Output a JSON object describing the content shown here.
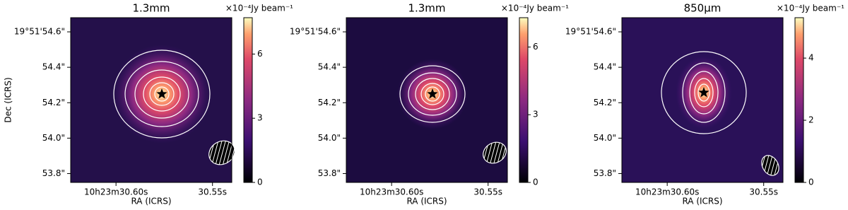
{
  "chart_data": [
    {
      "type": "image",
      "title": "1.3mm",
      "xlabel": "RA (ICRS)",
      "ylabel": "Dec (ICRS)",
      "xlim": [
        30.6235,
        30.54
      ],
      "xticks": [
        {
          "value": 30.6,
          "label": "10h23m30.60s"
        },
        {
          "value": 30.55,
          "label": "30.55s"
        }
      ],
      "ylim": [
        53.75,
        54.68
      ],
      "yticks": [
        {
          "value": 54.6,
          "label": "19°51'54.6\""
        },
        {
          "value": 54.4,
          "label": "54.4\""
        },
        {
          "value": 54.2,
          "label": "54.2\""
        },
        {
          "value": 54.0,
          "label": "54.0\""
        },
        {
          "value": 53.8,
          "label": "53.8\""
        }
      ],
      "colorbar_label": "×10⁻⁴Jy beam⁻¹",
      "clim": [
        0,
        7.7
      ],
      "cticks": [
        0,
        3,
        6
      ]
    },
    {
      "type": "image",
      "title": "1.3mm",
      "xlabel": "RA (ICRS)",
      "xlim": [
        30.6235,
        30.54
      ],
      "xticks": [
        {
          "value": 30.6,
          "label": "10h23m30.60s"
        },
        {
          "value": 30.55,
          "label": "30.55s"
        }
      ],
      "ylim": [
        53.75,
        54.68
      ],
      "yticks": [
        {
          "value": 54.6,
          "label": "19°51'54.6\""
        },
        {
          "value": 54.4,
          "label": "54.4\""
        },
        {
          "value": 54.2,
          "label": "54.2\""
        },
        {
          "value": 54.0,
          "label": "54.0\""
        },
        {
          "value": 53.8,
          "label": "53.8\""
        }
      ],
      "colorbar_label": "×10⁻⁴Jy beam⁻¹",
      "clim": [
        0,
        7.3
      ],
      "cticks": [
        0,
        3,
        6
      ]
    },
    {
      "type": "image",
      "title": "850μm",
      "xlabel": "RA (ICRS)",
      "xlim": [
        30.6235,
        30.54
      ],
      "xticks": [
        {
          "value": 30.6,
          "label": "10h23m30.60s"
        },
        {
          "value": 30.55,
          "label": "30.55s"
        }
      ],
      "ylim": [
        53.75,
        54.68
      ],
      "yticks": [
        {
          "value": 54.6,
          "label": "19°51'54.6\""
        },
        {
          "value": 54.4,
          "label": "54.4\""
        },
        {
          "value": 54.2,
          "label": "54.2\""
        },
        {
          "value": 54.0,
          "label": "54.0\""
        },
        {
          "value": 53.8,
          "label": "53.8\""
        }
      ],
      "colorbar_label": "×10⁻⁴Jy beam⁻¹",
      "clim": [
        0,
        5.3
      ],
      "cticks": [
        0,
        2,
        4
      ]
    }
  ]
}
